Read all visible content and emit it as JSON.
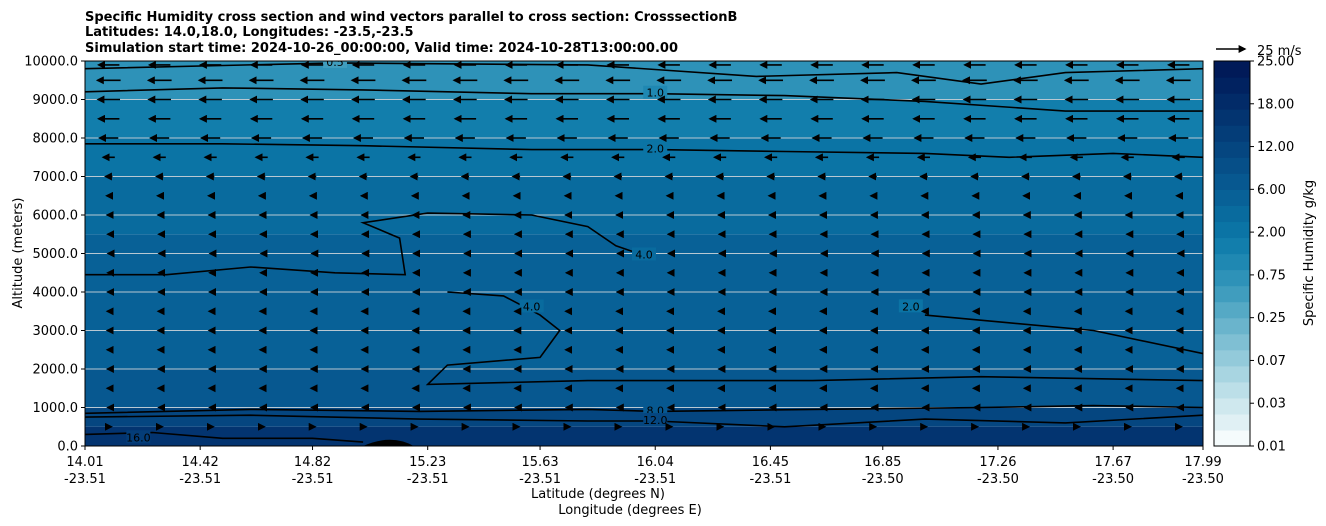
{
  "chart_data": {
    "type": "heatmap",
    "title_lines": [
      "Specific Humidity cross section and wind vectors parallel to cross section: CrosssectionB",
      "Latitudes: 14.0,18.0, Longitudes: -23.5,-23.5",
      "Simulation start time: 2024-10-26_00:00:00, Valid time: 2024-10-28T13:00:00.00"
    ],
    "ylabel": "Altitude (meters)",
    "xlabel_lines": [
      "Latitude (degrees N)",
      "Longitude (degrees E)"
    ],
    "ylim": [
      0,
      10000
    ],
    "y_ticks": [
      "0.0",
      "1000.0",
      "2000.0",
      "3000.0",
      "4000.0",
      "5000.0",
      "6000.0",
      "7000.0",
      "8000.0",
      "9000.0",
      "10000.0"
    ],
    "x_ticks": [
      {
        "lat": "14.01",
        "lon": "-23.51"
      },
      {
        "lat": "14.42",
        "lon": "-23.51"
      },
      {
        "lat": "14.82",
        "lon": "-23.51"
      },
      {
        "lat": "15.23",
        "lon": "-23.51"
      },
      {
        "lat": "15.63",
        "lon": "-23.51"
      },
      {
        "lat": "16.04",
        "lon": "-23.51"
      },
      {
        "lat": "16.45",
        "lon": "-23.51"
      },
      {
        "lat": "16.85",
        "lon": "-23.50"
      },
      {
        "lat": "17.26",
        "lon": "-23.50"
      },
      {
        "lat": "17.67",
        "lon": "-23.50"
      },
      {
        "lat": "17.99",
        "lon": "-23.50"
      }
    ],
    "x_range": [
      14.01,
      17.99
    ],
    "colorbar": {
      "label": "Specific Humidity g/kg",
      "tick_labels": [
        "0.01",
        "0.03",
        "0.07",
        "0.25",
        "0.75",
        "2.00",
        "6.00",
        "12.00",
        "18.00",
        "25.00"
      ],
      "colors": [
        "#f5fbfc",
        "#e0f0f4",
        "#cfe8ee",
        "#bcdfe8",
        "#a8d5e1",
        "#93cada",
        "#7fbfd3",
        "#6ab4cc",
        "#55a9c5",
        "#409dbe",
        "#2e92b8",
        "#1f88b2",
        "#127eac",
        "#0b74a5",
        "#096b9e",
        "#086197",
        "#075890",
        "#064f88",
        "#054680",
        "#043d78",
        "#033470",
        "#022b68",
        "#012260",
        "#011a58"
      ]
    },
    "humidity_layers": [
      {
        "z_bottom": 9000,
        "z_top": 10000,
        "value": 0.75
      },
      {
        "z_bottom": 8000,
        "z_top": 9000,
        "value": 1.5
      },
      {
        "z_bottom": 7000,
        "z_top": 8000,
        "value": 2.5
      },
      {
        "z_bottom": 5500,
        "z_top": 7000,
        "value": 3.5
      },
      {
        "z_bottom": 4000,
        "z_top": 5500,
        "value": 4.5
      },
      {
        "z_bottom": 2000,
        "z_top": 4000,
        "value": 6.0
      },
      {
        "z_bottom": 1000,
        "z_top": 2000,
        "value": 8.0
      },
      {
        "z_bottom": 500,
        "z_top": 1000,
        "value": 12.0
      },
      {
        "z_bottom": 0,
        "z_top": 500,
        "value": 16.0
      }
    ],
    "contours": [
      {
        "level": "0.5",
        "label_at": {
          "lat": 14.9,
          "z": 9950
        },
        "points": [
          [
            14.01,
            9800
          ],
          [
            14.9,
            9950
          ],
          [
            15.8,
            9900
          ],
          [
            16.4,
            9600
          ],
          [
            16.9,
            9700
          ],
          [
            17.2,
            9400
          ],
          [
            17.5,
            9700
          ],
          [
            17.99,
            9800
          ]
        ]
      },
      {
        "level": "1.0",
        "label_at": {
          "lat": 16.04,
          "z": 9150
        },
        "points": [
          [
            14.01,
            9200
          ],
          [
            14.5,
            9300
          ],
          [
            15.0,
            9250
          ],
          [
            15.6,
            9150
          ],
          [
            16.04,
            9150
          ],
          [
            16.5,
            9100
          ],
          [
            17.0,
            8950
          ],
          [
            17.5,
            8700
          ],
          [
            17.99,
            8700
          ]
        ]
      },
      {
        "level": "2.0",
        "label_at": {
          "lat": 16.04,
          "z": 7700
        },
        "points": [
          [
            14.01,
            7850
          ],
          [
            14.5,
            7850
          ],
          [
            15.0,
            7800
          ],
          [
            15.6,
            7700
          ],
          [
            16.04,
            7700
          ],
          [
            16.5,
            7650
          ],
          [
            17.0,
            7600
          ],
          [
            17.3,
            7500
          ],
          [
            17.67,
            7600
          ],
          [
            17.99,
            7500
          ]
        ]
      },
      {
        "level": "4.0",
        "label_at": {
          "lat": 16.0,
          "z": 4950
        },
        "points": [
          [
            14.01,
            4450
          ],
          [
            14.3,
            4450
          ],
          [
            14.6,
            4650
          ],
          [
            14.9,
            4500
          ],
          [
            15.15,
            4450
          ],
          [
            15.13,
            5400
          ],
          [
            15.0,
            5800
          ],
          [
            15.23,
            6050
          ],
          [
            15.6,
            6000
          ],
          [
            15.8,
            5700
          ],
          [
            15.9,
            5200
          ],
          [
            16.0,
            4950
          ]
        ]
      },
      {
        "level": "4.0",
        "label_at": {
          "lat": 15.6,
          "z": 3600
        },
        "points": [
          [
            15.3,
            4000
          ],
          [
            15.5,
            3900
          ],
          [
            15.63,
            3400
          ],
          [
            15.7,
            3000
          ],
          [
            15.63,
            2300
          ],
          [
            15.3,
            2100
          ],
          [
            15.23,
            1600
          ],
          [
            15.8,
            1700
          ],
          [
            16.1,
            1700
          ],
          [
            16.6,
            1700
          ],
          [
            17.2,
            1800
          ],
          [
            17.99,
            1700
          ]
        ]
      },
      {
        "level": "2.0",
        "label_at": {
          "lat": 16.95,
          "z": 3600
        },
        "points": [
          [
            17.0,
            3400
          ],
          [
            17.3,
            3200
          ],
          [
            17.6,
            3000
          ],
          [
            17.99,
            2400
          ]
        ]
      },
      {
        "level": "8.0",
        "label_at": {
          "lat": 16.04,
          "z": 900
        },
        "points": [
          [
            14.01,
            850
          ],
          [
            14.6,
            950
          ],
          [
            15.2,
            900
          ],
          [
            15.8,
            950
          ],
          [
            16.04,
            900
          ],
          [
            16.6,
            950
          ],
          [
            17.2,
            1000
          ],
          [
            17.6,
            1050
          ],
          [
            17.99,
            1000
          ]
        ]
      },
      {
        "level": "12.0",
        "label_at": {
          "lat": 16.04,
          "z": 650
        },
        "points": [
          [
            14.01,
            750
          ],
          [
            14.6,
            800
          ],
          [
            15.2,
            700
          ],
          [
            15.8,
            650
          ],
          [
            16.04,
            650
          ],
          [
            16.5,
            500
          ],
          [
            17.0,
            700
          ],
          [
            17.5,
            600
          ],
          [
            17.99,
            800
          ]
        ]
      },
      {
        "level": "16.0",
        "label_at": {
          "lat": 14.2,
          "z": 200
        },
        "points": [
          [
            14.01,
            300
          ],
          [
            14.25,
            350
          ],
          [
            14.5,
            200
          ],
          [
            14.82,
            200
          ],
          [
            15.0,
            100
          ]
        ]
      }
    ],
    "vector_key": {
      "label": "25 m/s",
      "speed": 25
    },
    "wind_speed_profile": [
      {
        "z": 9900,
        "u": -18
      },
      {
        "z": 9500,
        "u": -20
      },
      {
        "z": 9000,
        "u": -19
      },
      {
        "z": 8500,
        "u": -18
      },
      {
        "z": 8000,
        "u": -16
      },
      {
        "z": 7500,
        "u": -10
      },
      {
        "z": 7000,
        "u": -6
      },
      {
        "z": 6500,
        "u": -4
      },
      {
        "z": 6000,
        "u": -3
      },
      {
        "z": 5500,
        "u": -2
      },
      {
        "z": 5000,
        "u": -1.5
      },
      {
        "z": 4500,
        "u": -2
      },
      {
        "z": 4000,
        "u": -2
      },
      {
        "z": 3500,
        "u": -3
      },
      {
        "z": 3000,
        "u": -3
      },
      {
        "z": 2500,
        "u": -3
      },
      {
        "z": 2000,
        "u": -2.5
      },
      {
        "z": 1500,
        "u": -3
      },
      {
        "z": 1000,
        "u": -2
      },
      {
        "z": 500,
        "u": 4
      }
    ],
    "terrain": {
      "lat_start": 15.0,
      "lat_peak": 15.1,
      "lat_end": 15.18,
      "z_peak": 220
    },
    "grid": "horizontal"
  }
}
